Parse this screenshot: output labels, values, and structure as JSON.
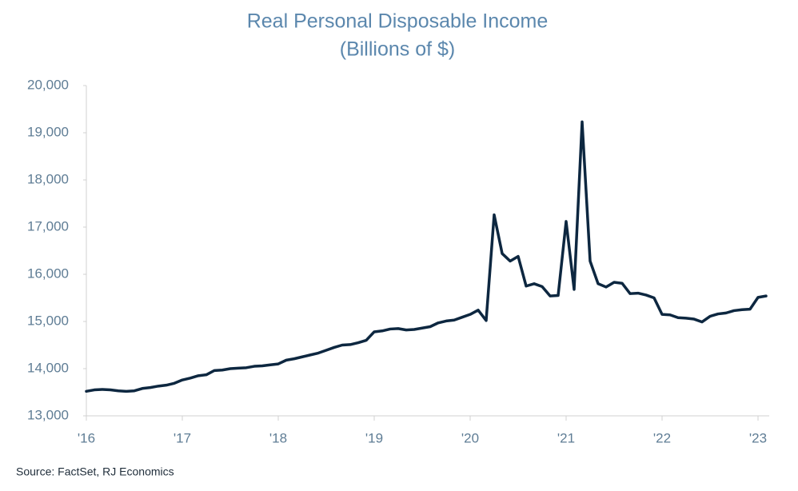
{
  "chart_data": {
    "type": "line",
    "title": "Real Personal Disposable Income",
    "subtitle": "(Billions of $)",
    "source": "Source: FactSet, RJ Economics",
    "categories": [
      "'16",
      null,
      null,
      null,
      null,
      null,
      null,
      null,
      null,
      null,
      null,
      null,
      "'17",
      null,
      null,
      null,
      null,
      null,
      null,
      null,
      null,
      null,
      null,
      null,
      "'18",
      null,
      null,
      null,
      null,
      null,
      null,
      null,
      null,
      null,
      null,
      null,
      "'19",
      null,
      null,
      null,
      null,
      null,
      null,
      null,
      null,
      null,
      null,
      null,
      "'20",
      null,
      null,
      null,
      null,
      null,
      null,
      null,
      null,
      null,
      null,
      null,
      "'21",
      null,
      null,
      null,
      null,
      null,
      null,
      null,
      null,
      null,
      null,
      null,
      "'22",
      null,
      null,
      null,
      null,
      null,
      null,
      null,
      null,
      null,
      null,
      null,
      "'23",
      null
    ],
    "series": [
      {
        "color": "#0d2740",
        "values": [
          13520,
          13550,
          13560,
          13550,
          13530,
          13520,
          13530,
          13580,
          13600,
          13630,
          13650,
          13690,
          13760,
          13800,
          13850,
          13870,
          13960,
          13970,
          14000,
          14010,
          14020,
          14050,
          14060,
          14080,
          14100,
          14180,
          14210,
          14250,
          14290,
          14330,
          14390,
          14450,
          14500,
          14510,
          14550,
          14600,
          14780,
          14800,
          14840,
          14850,
          14820,
          14830,
          14860,
          14890,
          14970,
          15010,
          15030,
          15090,
          15150,
          15240,
          15020,
          17260,
          16440,
          16280,
          16380,
          15750,
          15800,
          15740,
          15540,
          15550,
          17120,
          15680,
          19230,
          16280,
          15800,
          15730,
          15830,
          15810,
          15590,
          15600,
          15560,
          15500,
          15150,
          15140,
          15080,
          15070,
          15050,
          14990,
          15110,
          15160,
          15180,
          15230,
          15250,
          15260,
          15510,
          15540
        ]
      }
    ],
    "ylim": [
      13000,
      20000
    ],
    "yticks": [
      {
        "value": 13000,
        "label": "13,000"
      },
      {
        "value": 14000,
        "label": "14,000"
      },
      {
        "value": 15000,
        "label": "15,000"
      },
      {
        "value": 16000,
        "label": "16,000"
      },
      {
        "value": 17000,
        "label": "17,000"
      },
      {
        "value": 18000,
        "label": "18,000"
      },
      {
        "value": 19000,
        "label": "19,000"
      },
      {
        "value": 20000,
        "label": "20,000"
      }
    ],
    "grid": false
  }
}
